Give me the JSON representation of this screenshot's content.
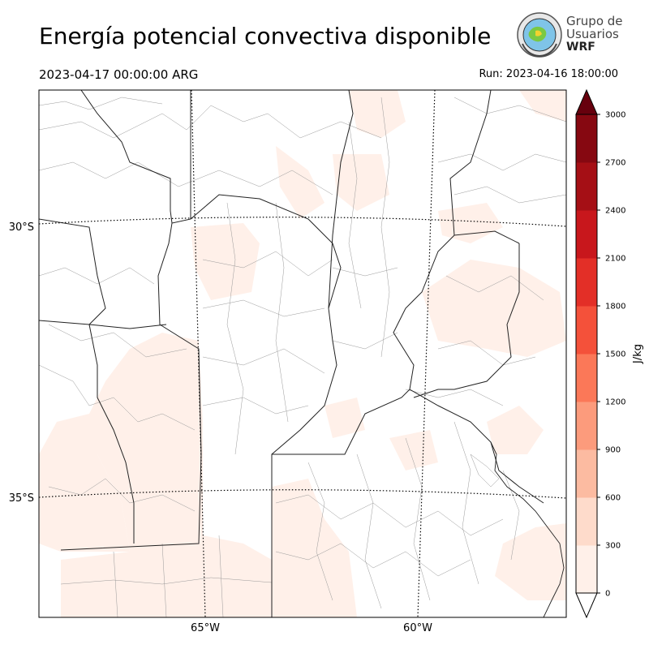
{
  "header": {
    "title": "Energía potencial convectiva disponible",
    "valid_time": "2023-04-17 00:00:00 ARG",
    "run_label": "Run: 2023-04-16 18:00:00"
  },
  "logo": {
    "line1": "Grupo de",
    "line2": "Usuarios",
    "line3": "WRF"
  },
  "map": {
    "lat_labels": [
      "30°S",
      "35°S"
    ],
    "lon_labels": [
      "65°W",
      "60°W"
    ]
  },
  "colorbar": {
    "unit": "J/kg",
    "ticks": [
      "0",
      "300",
      "600",
      "900",
      "1200",
      "1500",
      "1800",
      "2100",
      "2400",
      "2700",
      "3000"
    ],
    "colors": [
      "#fff0e9",
      "#fedbcb",
      "#fcbba1",
      "#fc9b7c",
      "#fb7858",
      "#f4513a",
      "#e32f27",
      "#c8171c",
      "#a50f15",
      "#860811"
    ],
    "over_color": "#67000d"
  }
}
